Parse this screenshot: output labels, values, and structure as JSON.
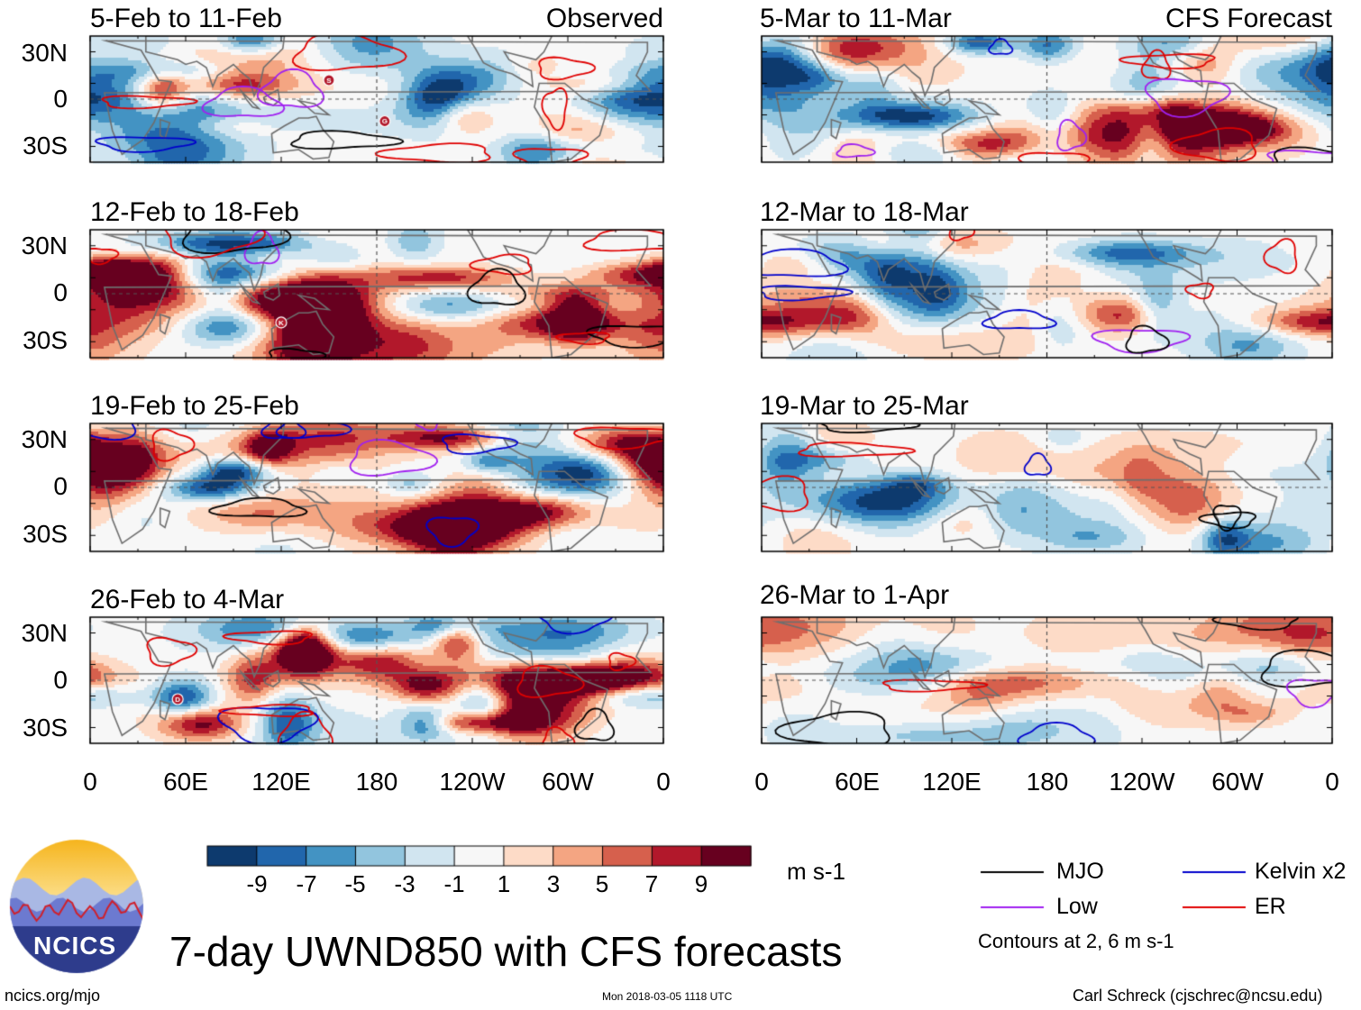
{
  "figure": {
    "main_title": "7-day UWND850 with CFS forecasts",
    "org": "NCICS",
    "website": "ncics.org/mjo",
    "timestamp": "Mon 2018-03-05 1118 UTC",
    "credit": "Carl Schreck (cjschrec@ncsu.edu)"
  },
  "chart_data": {
    "type": "heatmap",
    "variable": "850-hPa zonal wind anomaly (7-day mean)",
    "units": "m s-1",
    "x_ticks": [
      "0",
      "60E",
      "120E",
      "180",
      "120W",
      "60W",
      "0"
    ],
    "y_ticks": [
      "30N",
      "0",
      "30S"
    ],
    "xlim": [
      0,
      360
    ],
    "ylim": [
      -40,
      40
    ],
    "colorbar": {
      "levels": [
        -11,
        -9,
        -7,
        -5,
        -3,
        -1,
        1,
        3,
        5,
        7,
        9,
        11
      ],
      "tick_labels": [
        "-9",
        "-7",
        "-5",
        "-3",
        "-1",
        "1",
        "3",
        "5",
        "7",
        "9"
      ],
      "colors": [
        "#0d3a6e",
        "#2166ac",
        "#4393c3",
        "#92c5de",
        "#d1e5f0",
        "#f7f7f7",
        "#fddbc7",
        "#f4a582",
        "#d6604d",
        "#b2182b",
        "#67001f"
      ]
    },
    "legend": [
      {
        "label": "MJO",
        "color": "#000000"
      },
      {
        "label": "Kelvin x2",
        "color": "#0000cc"
      },
      {
        "label": "Low",
        "color": "#a020f0"
      },
      {
        "label": "ER",
        "color": "#e00000"
      }
    ],
    "contours_note": "Contours at 2, 6 m s-1",
    "panels": [
      {
        "title": "5-Feb to 11-Feb",
        "tag": "Observed",
        "column": "observed",
        "seed": 11,
        "amp": 1.0,
        "storms": [
          {
            "label": "S",
            "lon": 150,
            "lat": 12
          },
          {
            "label": "G",
            "lon": 185,
            "lat": -14
          }
        ]
      },
      {
        "title": "12-Feb to 18-Feb",
        "tag": "",
        "column": "observed",
        "seed": 23,
        "amp": 1.0,
        "storms": [
          {
            "label": "K",
            "lon": 120,
            "lat": -18
          }
        ]
      },
      {
        "title": "19-Feb to 25-Feb",
        "tag": "",
        "column": "observed",
        "seed": 37,
        "amp": 1.0,
        "storms": []
      },
      {
        "title": "26-Feb to 4-Mar",
        "tag": "",
        "column": "observed",
        "seed": 51,
        "amp": 1.0,
        "storms": [
          {
            "label": "D",
            "lon": 55,
            "lat": -12
          }
        ]
      },
      {
        "title": "5-Mar to 11-Mar",
        "tag": "CFS Forecast",
        "column": "forecast",
        "seed": 67,
        "amp": 1.0,
        "storms": []
      },
      {
        "title": "12-Mar to 18-Mar",
        "tag": "",
        "column": "forecast",
        "seed": 79,
        "amp": 0.7,
        "storms": []
      },
      {
        "title": "19-Mar to 25-Mar",
        "tag": "",
        "column": "forecast",
        "seed": 91,
        "amp": 0.5,
        "storms": []
      },
      {
        "title": "26-Mar to 1-Apr",
        "tag": "",
        "column": "forecast",
        "seed": 103,
        "amp": 0.4,
        "storms": []
      }
    ]
  }
}
